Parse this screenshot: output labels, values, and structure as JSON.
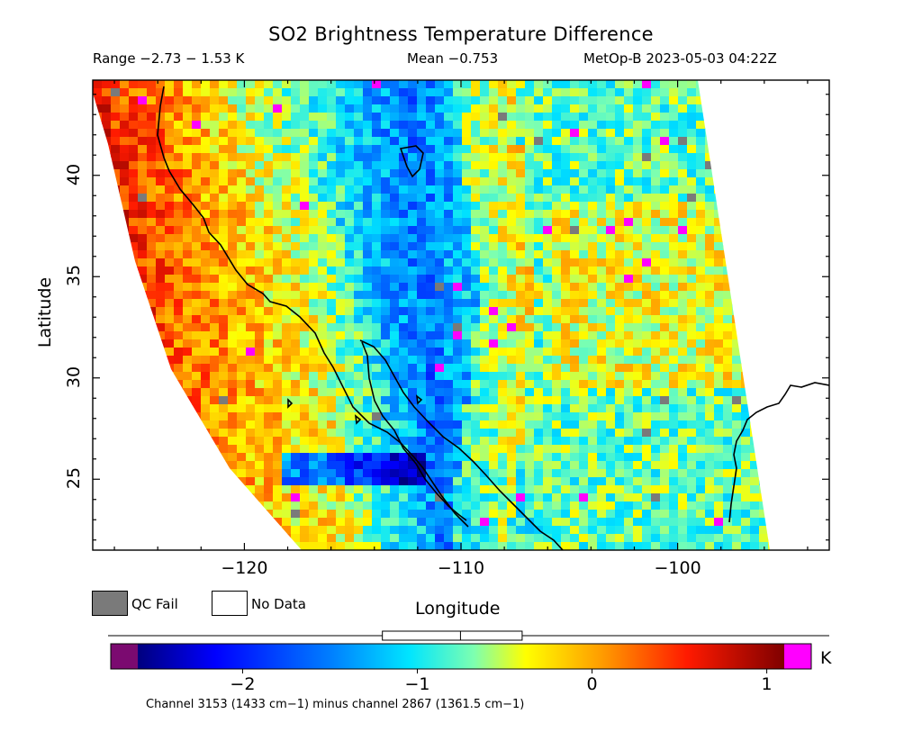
{
  "title": "SO2 Brightness Temperature Difference",
  "stats": {
    "range": "Range −2.73 − 1.53 K",
    "mean": "Mean −0.753",
    "satellite": "MetOp-B 2023-05-03 04:22Z"
  },
  "axes": {
    "xlabel": "Longitude",
    "ylabel": "Latitude",
    "xticks": [
      {
        "value": -120,
        "label": "−120"
      },
      {
        "value": -110,
        "label": "−110"
      },
      {
        "value": -100,
        "label": "−100"
      }
    ],
    "yticks": [
      {
        "value": 25,
        "label": "25"
      },
      {
        "value": 30,
        "label": "30"
      },
      {
        "value": 35,
        "label": "35"
      },
      {
        "value": 40,
        "label": "40"
      }
    ],
    "xlim": [
      -127,
      -93
    ],
    "ylim": [
      21.5,
      44.7
    ]
  },
  "legend": {
    "qc_fail": "QC Fail",
    "no_data": "No Data",
    "qc_color": "#7a7a7a"
  },
  "colorbar": {
    "unit": "K",
    "ticks": [
      {
        "value": -2,
        "label": "−2"
      },
      {
        "value": -1,
        "label": "−1"
      },
      {
        "value": 0,
        "label": "0"
      },
      {
        "value": 1,
        "label": "1"
      }
    ],
    "range": [
      -2.6,
      1.1
    ],
    "under_color": "#7b0a70",
    "over_color": "#ff00ff",
    "mean_marker": -0.753,
    "box_range": [
      -1.2,
      -0.4
    ]
  },
  "footnote": "Channel 3153 (1433 cm−1) minus channel 2867 (1361.5 cm−1)"
}
